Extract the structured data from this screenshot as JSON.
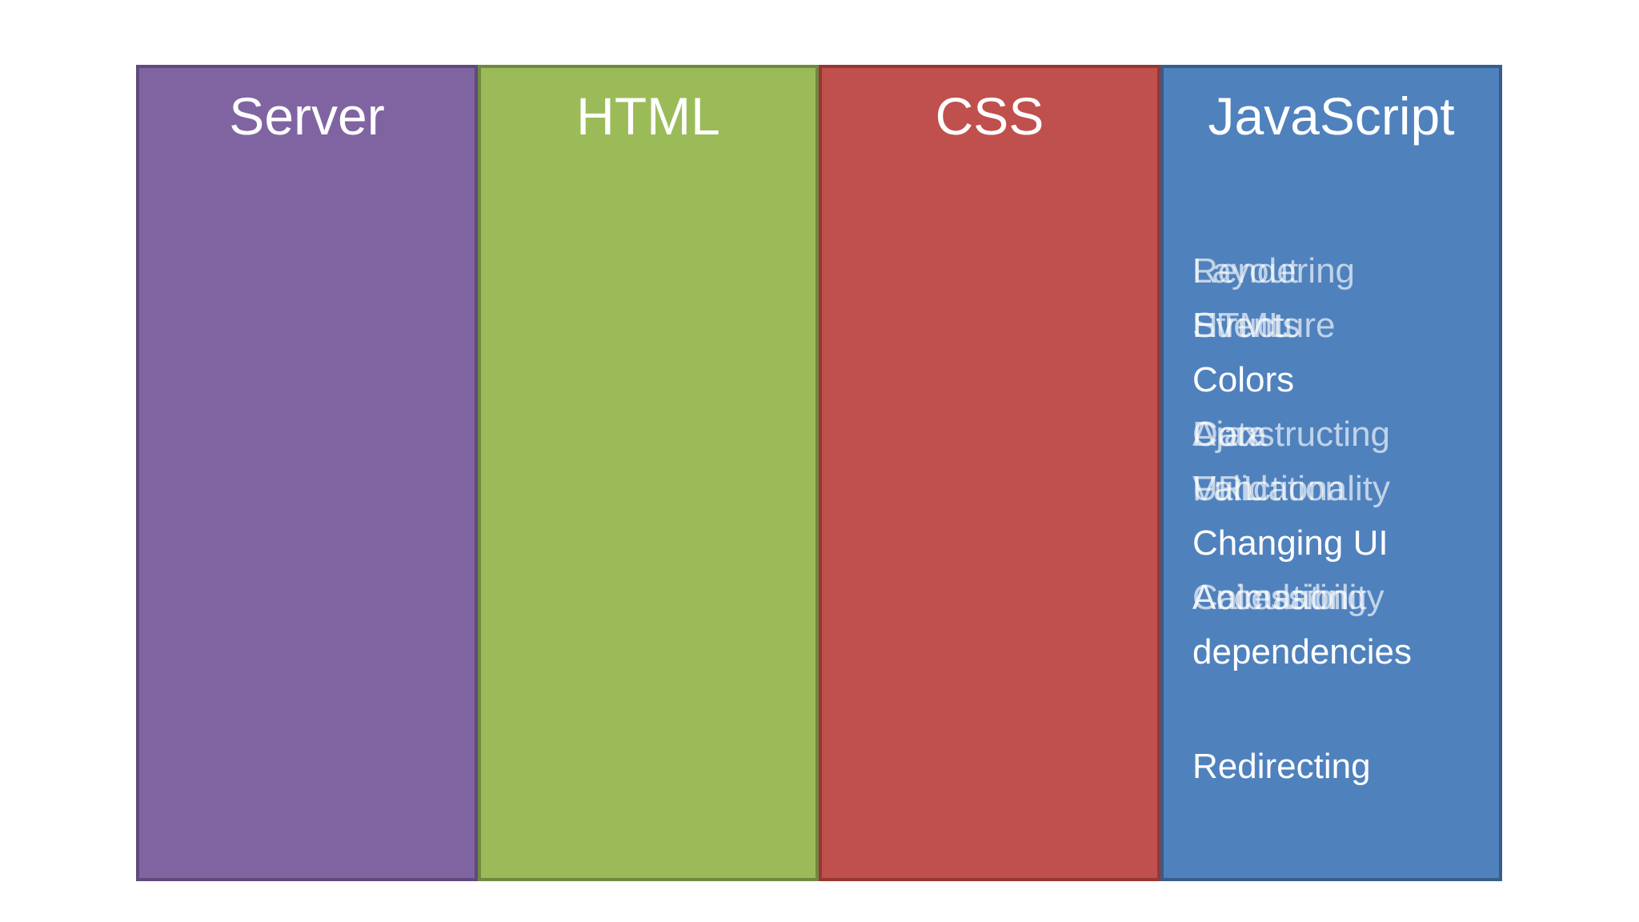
{
  "columns": [
    {
      "title": "Server"
    },
    {
      "title": "HTML"
    },
    {
      "title": "CSS"
    },
    {
      "title": "JavaScript",
      "items": [
        [
          "Rendering",
          "Layout"
        ],
        [
          "HTML",
          "Events",
          "Structure"
        ],
        [
          "Colors"
        ],
        [
          "Constructing",
          "Ajax",
          "Data"
        ],
        [
          "Functionality",
          "URL",
          "Validation"
        ],
        [
          "Changing UI"
        ],
        [
          "Calculating",
          "Accessibility",
          "Animation"
        ],
        [
          "dependencies"
        ]
      ],
      "last_item": "Redirecting"
    }
  ]
}
